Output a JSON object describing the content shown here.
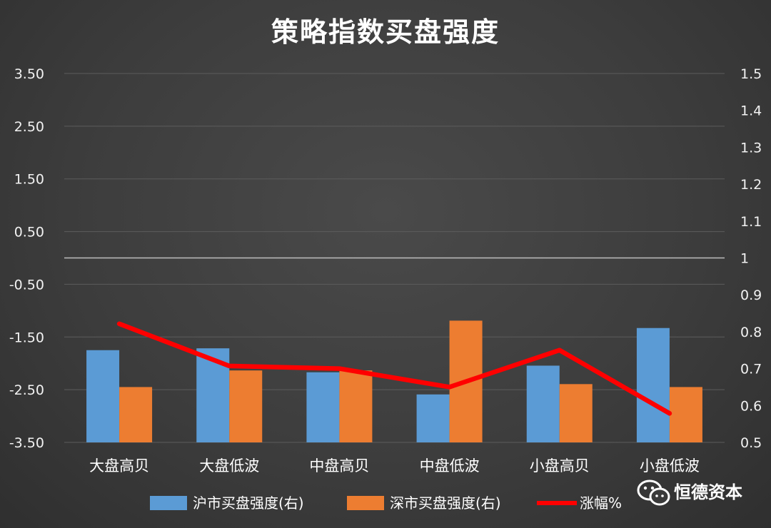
{
  "chart_data": {
    "type": "bar",
    "title": "策略指数买盘强度",
    "categories": [
      "大盘高贝",
      "大盘低波",
      "中盘高贝",
      "中盘低波",
      "小盘高贝",
      "小盘低波"
    ],
    "left_axis": {
      "ticks": [
        "3.50",
        "2.50",
        "1.50",
        "0.50",
        "-0.50",
        "-1.50",
        "-2.50",
        "-3.50"
      ],
      "range": [
        -3.5,
        3.5
      ]
    },
    "right_axis": {
      "ticks": [
        "1.5",
        "1.4",
        "1.3",
        "1.2",
        "1.1",
        "1",
        "0.9",
        "0.8",
        "0.7",
        "0.6",
        "0.5"
      ],
      "range": [
        0.5,
        1.5
      ],
      "baseline": 1
    },
    "series": [
      {
        "name": "沪市买盘强度(右)",
        "type": "bar",
        "axis": "right",
        "color": "#5b9bd5",
        "values": [
          0.75,
          0.755,
          0.69,
          0.63,
          0.708,
          0.81
        ]
      },
      {
        "name": "深市买盘强度(右)",
        "type": "bar",
        "axis": "right",
        "color": "#ed7d31",
        "values": [
          0.65,
          0.695,
          0.695,
          0.83,
          0.658,
          0.65
        ]
      },
      {
        "name": "涨幅%",
        "type": "line",
        "axis": "left",
        "color": "#ff0000",
        "values": [
          -1.25,
          -2.05,
          -2.1,
          -2.45,
          -1.75,
          -2.95
        ]
      }
    ],
    "grid": true,
    "legend_position": "bottom"
  },
  "watermark": {
    "text": "恒德资本",
    "icon": "wechat-icon"
  }
}
